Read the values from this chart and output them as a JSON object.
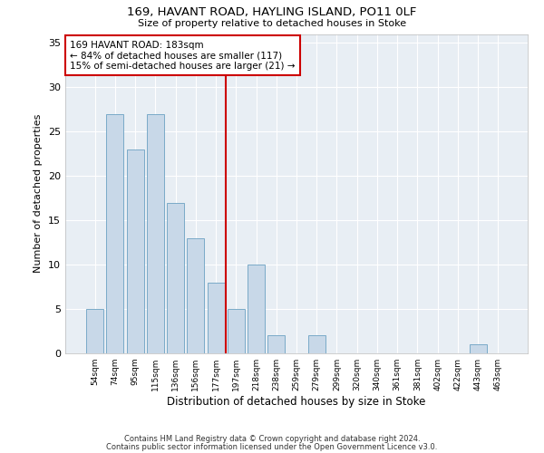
{
  "title1": "169, HAVANT ROAD, HAYLING ISLAND, PO11 0LF",
  "title2": "Size of property relative to detached houses in Stoke",
  "xlabel": "Distribution of detached houses by size in Stoke",
  "ylabel": "Number of detached properties",
  "categories": [
    "54sqm",
    "74sqm",
    "95sqm",
    "115sqm",
    "136sqm",
    "156sqm",
    "177sqm",
    "197sqm",
    "218sqm",
    "238sqm",
    "259sqm",
    "279sqm",
    "299sqm",
    "320sqm",
    "340sqm",
    "361sqm",
    "381sqm",
    "402sqm",
    "422sqm",
    "443sqm",
    "463sqm"
  ],
  "values": [
    5,
    27,
    23,
    27,
    17,
    13,
    8,
    5,
    10,
    2,
    0,
    2,
    0,
    0,
    0,
    0,
    0,
    0,
    0,
    1,
    0
  ],
  "bar_color": "#c8d8e8",
  "bar_edge_color": "#7aaac8",
  "vline_x": 6.5,
  "vline_color": "#cc0000",
  "annotation_line1": "169 HAVANT ROAD: 183sqm",
  "annotation_line2": "← 84% of detached houses are smaller (117)",
  "annotation_line3": "15% of semi-detached houses are larger (21) →",
  "annotation_box_color": "#ffffff",
  "annotation_border_color": "#cc0000",
  "ylim": [
    0,
    36
  ],
  "yticks": [
    0,
    5,
    10,
    15,
    20,
    25,
    30,
    35
  ],
  "bg_color": "#e8eef4",
  "grid_color": "#ffffff",
  "footnote1": "Contains HM Land Registry data © Crown copyright and database right 2024.",
  "footnote2": "Contains public sector information licensed under the Open Government Licence v3.0."
}
